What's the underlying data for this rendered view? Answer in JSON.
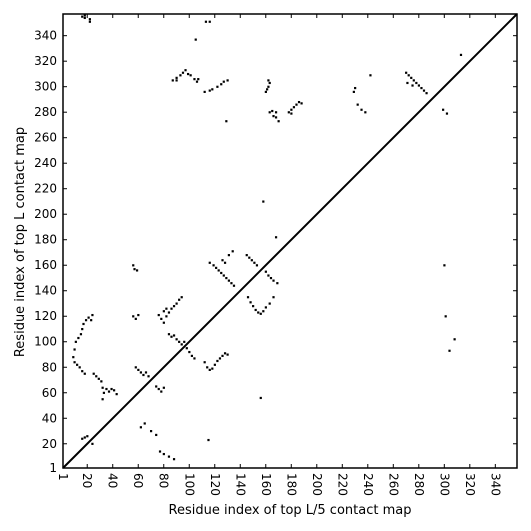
{
  "chart_data": {
    "type": "scatter",
    "xlabel": "Residue index of top L/5 contact map",
    "ylabel": "Residue index of top L contact map",
    "xlim": [
      1,
      357
    ],
    "ylim": [
      1,
      357
    ],
    "x_ticks": [
      1,
      20,
      40,
      60,
      80,
      100,
      120,
      140,
      160,
      180,
      200,
      220,
      240,
      260,
      280,
      300,
      320,
      340
    ],
    "y_ticks": [
      1,
      20,
      40,
      60,
      80,
      100,
      120,
      140,
      160,
      180,
      200,
      220,
      240,
      260,
      280,
      300,
      320,
      340
    ],
    "x_tick_rotation": "vertical",
    "grid": false,
    "diagonal": true,
    "series": [
      {
        "region": "lower-right",
        "points": [
          [
            16,
            355
          ],
          [
            18,
            356
          ],
          [
            18,
            354
          ],
          [
            22,
            353
          ],
          [
            22,
            351
          ],
          [
            113,
            351
          ],
          [
            116,
            351
          ],
          [
            105,
            337
          ],
          [
            158,
            210
          ],
          [
            168,
            182
          ],
          [
            87,
            305
          ],
          [
            90,
            305
          ],
          [
            90,
            307
          ],
          [
            93,
            309
          ],
          [
            95,
            311
          ],
          [
            97,
            313
          ],
          [
            99,
            310
          ],
          [
            101,
            309
          ],
          [
            104,
            306
          ],
          [
            106,
            304
          ],
          [
            107,
            306
          ],
          [
            112,
            296
          ],
          [
            116,
            297
          ],
          [
            118,
            298
          ],
          [
            122,
            300
          ],
          [
            125,
            302
          ],
          [
            127,
            304
          ],
          [
            130,
            305
          ],
          [
            129,
            273
          ],
          [
            160,
            296
          ],
          [
            161,
            298
          ],
          [
            162,
            300
          ],
          [
            163,
            303
          ],
          [
            162,
            305
          ],
          [
            163,
            280
          ],
          [
            165,
            281
          ],
          [
            166,
            277
          ],
          [
            168,
            276
          ],
          [
            170,
            273
          ],
          [
            168,
            280
          ],
          [
            178,
            280
          ],
          [
            180,
            282
          ],
          [
            182,
            284
          ],
          [
            184,
            286
          ],
          [
            186,
            288
          ],
          [
            188,
            287
          ],
          [
            180,
            279
          ],
          [
            229,
            296
          ],
          [
            230,
            299
          ],
          [
            232,
            286
          ],
          [
            235,
            282
          ],
          [
            238,
            280
          ],
          [
            242,
            309
          ],
          [
            270,
            311
          ],
          [
            272,
            309
          ],
          [
            274,
            307
          ],
          [
            276,
            305
          ],
          [
            278,
            303
          ],
          [
            280,
            301
          ],
          [
            282,
            299
          ],
          [
            284,
            297
          ],
          [
            286,
            295
          ],
          [
            271,
            303
          ],
          [
            275,
            301
          ],
          [
            299,
            282
          ],
          [
            302,
            279
          ],
          [
            313,
            325
          ],
          [
            116,
            162
          ],
          [
            119,
            160
          ],
          [
            121,
            158
          ],
          [
            123,
            156
          ],
          [
            125,
            154
          ],
          [
            127,
            152
          ],
          [
            129,
            150
          ],
          [
            131,
            148
          ],
          [
            133,
            146
          ],
          [
            135,
            144
          ],
          [
            131,
            168
          ],
          [
            134,
            171
          ],
          [
            126,
            164
          ],
          [
            128,
            162
          ],
          [
            145,
            168
          ],
          [
            147,
            166
          ],
          [
            149,
            164
          ],
          [
            151,
            162
          ],
          [
            153,
            160
          ],
          [
            146,
            135
          ],
          [
            148,
            131
          ],
          [
            150,
            128
          ],
          [
            152,
            125
          ],
          [
            154,
            123
          ],
          [
            156,
            122
          ],
          [
            158,
            124
          ],
          [
            160,
            127
          ],
          [
            163,
            130
          ],
          [
            166,
            135
          ],
          [
            160,
            155
          ],
          [
            162,
            152
          ],
          [
            164,
            150
          ],
          [
            166,
            148
          ],
          [
            169,
            146
          ],
          [
            56,
            160
          ],
          [
            57,
            157
          ],
          [
            59,
            156
          ],
          [
            56,
            120
          ],
          [
            58,
            118
          ],
          [
            60,
            121
          ],
          [
            76,
            121
          ],
          [
            78,
            118
          ],
          [
            80,
            115
          ],
          [
            82,
            120
          ],
          [
            84,
            123
          ],
          [
            86,
            126
          ],
          [
            88,
            128
          ],
          [
            90,
            130
          ],
          [
            92,
            133
          ],
          [
            94,
            135
          ],
          [
            80,
            124
          ],
          [
            82,
            126
          ],
          [
            84,
            106
          ],
          [
            86,
            104
          ],
          [
            88,
            105
          ],
          [
            90,
            102
          ],
          [
            92,
            100
          ],
          [
            94,
            98
          ],
          [
            96,
            100
          ],
          [
            98,
            95
          ],
          [
            100,
            92
          ],
          [
            102,
            89
          ],
          [
            104,
            87
          ],
          [
            112,
            84
          ],
          [
            114,
            80
          ],
          [
            116,
            78
          ],
          [
            118,
            79
          ],
          [
            120,
            82
          ],
          [
            122,
            85
          ],
          [
            124,
            87
          ],
          [
            126,
            89
          ],
          [
            128,
            91
          ],
          [
            130,
            90
          ],
          [
            9,
            88
          ],
          [
            10,
            94
          ],
          [
            11,
            100
          ],
          [
            13,
            103
          ],
          [
            15,
            106
          ],
          [
            16,
            110
          ],
          [
            17,
            114
          ],
          [
            10,
            84
          ],
          [
            12,
            82
          ],
          [
            14,
            80
          ],
          [
            16,
            77
          ],
          [
            18,
            75
          ],
          [
            19,
            117
          ],
          [
            21,
            119
          ],
          [
            23,
            117
          ],
          [
            24,
            121
          ],
          [
            25,
            75
          ],
          [
            27,
            73
          ],
          [
            29,
            71
          ],
          [
            31,
            69
          ],
          [
            32,
            64
          ],
          [
            33,
            60
          ],
          [
            32,
            55
          ],
          [
            35,
            63
          ],
          [
            37,
            61
          ],
          [
            39,
            63
          ],
          [
            41,
            62
          ],
          [
            43,
            59
          ],
          [
            58,
            80
          ],
          [
            60,
            78
          ],
          [
            62,
            76
          ],
          [
            64,
            74
          ],
          [
            66,
            76
          ],
          [
            68,
            73
          ],
          [
            74,
            65
          ],
          [
            76,
            63
          ],
          [
            78,
            61
          ],
          [
            80,
            64
          ],
          [
            62,
            33
          ],
          [
            65,
            36
          ],
          [
            70,
            30
          ],
          [
            74,
            27
          ],
          [
            77,
            14
          ],
          [
            80,
            12
          ],
          [
            84,
            10
          ],
          [
            88,
            8
          ],
          [
            115,
            23
          ],
          [
            16,
            24
          ],
          [
            18,
            25
          ],
          [
            20,
            26
          ],
          [
            24,
            20
          ],
          [
            156,
            56
          ],
          [
            300,
            160
          ],
          [
            301,
            120
          ],
          [
            304,
            93
          ],
          [
            308,
            102
          ]
        ]
      }
    ]
  }
}
